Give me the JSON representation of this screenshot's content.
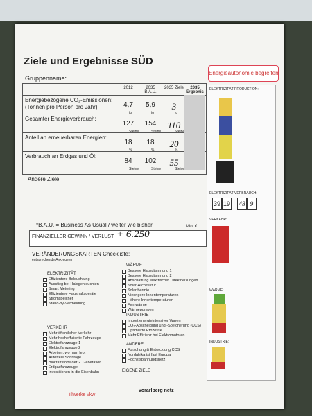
{
  "header": {
    "title": "Ziele und Ergebnisse SÜD",
    "logo": "Energieautonomie begreifen",
    "group_label": "Gruppenname:"
  },
  "table": {
    "columns": [
      "2012",
      "2035 B.A.U.",
      "2035 Ziele",
      "2035 Ergebnis"
    ],
    "rows": [
      {
        "label": "Energiebezogene CO₂-Emissionen: (Tonnen pro Person pro Jahr)",
        "unit": "to",
        "values": [
          "4,7",
          "5,9",
          "3"
        ]
      },
      {
        "label": "Gesamter Energieverbrauch:",
        "unit": "Steine",
        "values": [
          "127",
          "154",
          "110"
        ]
      },
      {
        "label": "Anteil an erneuerbaren Energien:",
        "unit": "%",
        "values": [
          "18",
          "18",
          "20"
        ]
      },
      {
        "label": "Verbrauch an Erdgas und Öl:",
        "unit": "Steine",
        "values": [
          "84",
          "102",
          "55"
        ]
      }
    ]
  },
  "other_goals": "Andere Ziele:",
  "footnote": "*B.A.U. = Business As Usual / weiter wie bisher",
  "finance": {
    "label": "FINANZIELLER GEWINN / VERLUST:",
    "value": "+ 6.250",
    "unit": "Mio. €"
  },
  "checklist": {
    "title": "VERÄNDERUNGSKARTEN Checkliste:",
    "subtitle": "entsprechende Ankreuzen",
    "groups": [
      {
        "name": "ELEKTRIZITÄT",
        "items": [
          "Effizientere Beleuchtung",
          "Ausstieg bei Halogenleuchten",
          "Smart Metering",
          "Effizientere Haushaltsgeräte",
          "Stromspeicher",
          "Stand-by-Vermeidung"
        ]
      },
      {
        "name": "VERKEHR",
        "items": [
          "Mehr öffentlicher Verkehr",
          "Mehr hocheffiziente Fahrzeuge",
          "Elektrofahrzeuge 1",
          "Elektrofahrzeuge 2",
          "Arbeiten, wo man lebt",
          "Autofreie Sonntage",
          "Biokraftstoffe der 2. Generation",
          "Erdgasfahrzeuge",
          "Investitionen in die Eisenbahn"
        ]
      },
      {
        "name": "WÄRME",
        "items": [
          "Bessere Hausdämmung 1",
          "Bessere Hausdämmung 2",
          "Abschaffung elektrischer Direktheizungen",
          "Solar-Architektur",
          "Solarthermie",
          "Niedrigere Innentemperaturen",
          "Höhere Innentemperaturen",
          "Fernwärme",
          "Wärmepumpen"
        ]
      },
      {
        "name": "INDUSTRIE",
        "items": [
          "Import energieintensiver Waren",
          "CO₂-Abscheidung und -Speicherung (CCS)",
          "Optimierte Prozesse",
          "Mehr Effizienz bei Elektromotoren"
        ]
      },
      {
        "name": "ANDERE",
        "items": [
          "Forschung & Entwicklung CCS",
          "Nordafrika ist fast Europa",
          "Höchstspannungsnetz"
        ]
      }
    ],
    "own_goals": "EIGENE ZIELE"
  },
  "side_panel": {
    "sections": [
      "ELEKTRIZITÄT PRODUKTION:",
      "ELEKTRIZITÄT VERBRAUCH:",
      "VERKEHR:",
      "WÄRME:",
      "INDUSTRIE:"
    ],
    "consumption": [
      "39",
      "19",
      "48",
      "9"
    ]
  },
  "footer": {
    "sponsors": [
      "illwerke vkw",
      "vorarlberg netz"
    ]
  }
}
